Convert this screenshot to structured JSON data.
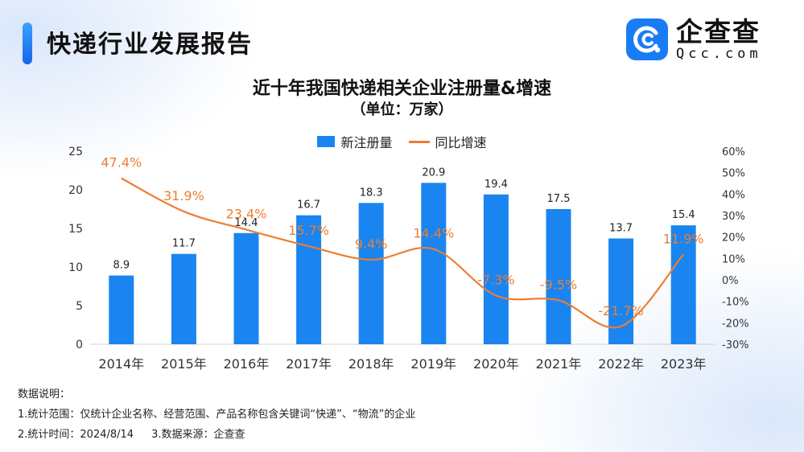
{
  "header": {
    "title": "快递行业发展报告"
  },
  "logo": {
    "name": "企查查",
    "url": "Qcc.com"
  },
  "colors": {
    "accent": "#1a7cf5",
    "bar": "#1a85f0",
    "line": "#ed7d31"
  },
  "chart_data": {
    "type": "bar",
    "title": "近十年我国快递相关企业注册量&增速",
    "unit_label": "（单位：万家）",
    "categories": [
      "2014年",
      "2015年",
      "2016年",
      "2017年",
      "2018年",
      "2019年",
      "2020年",
      "2021年",
      "2022年",
      "2023年"
    ],
    "series": [
      {
        "name": "新注册量",
        "type": "bar",
        "axis": "left",
        "values": [
          8.9,
          11.7,
          14.4,
          16.7,
          18.3,
          20.9,
          19.4,
          17.5,
          13.7,
          15.4
        ],
        "labels": [
          "8.9",
          "11.7",
          "14.4",
          "16.7",
          "18.3",
          "20.9",
          "19.4",
          "17.5",
          "13.7",
          "15.4"
        ]
      },
      {
        "name": "同比增速",
        "type": "line",
        "axis": "right",
        "values": [
          47.4,
          31.9,
          23.4,
          15.7,
          9.4,
          14.4,
          -7.3,
          -9.5,
          -21.7,
          11.9
        ],
        "labels": [
          "47.4%",
          "31.9%",
          "23.4%",
          "15.7%",
          "9.4%",
          "14.4%",
          "-7.3%",
          "-9.5%",
          "-21.7%",
          "11.9%"
        ]
      }
    ],
    "y_left": {
      "ylim": [
        0,
        25
      ],
      "ticks": [
        0,
        5,
        10,
        15,
        20,
        25
      ]
    },
    "y_right": {
      "ylim": [
        -30,
        60
      ],
      "ticks": [
        "-30%",
        "-20%",
        "-10%",
        "0%",
        "10%",
        "20%",
        "30%",
        "40%",
        "50%",
        "60%"
      ]
    },
    "legend": "top-center",
    "grid": false
  },
  "notes": {
    "heading": "数据说明：",
    "scope": "1.统计范围：仅统计企业名称、经营范围、产品名称包含关键词“快递”、“物流”的企业",
    "time": "2.统计时间：2024/8/14",
    "source": "3.数据来源：企查查"
  }
}
